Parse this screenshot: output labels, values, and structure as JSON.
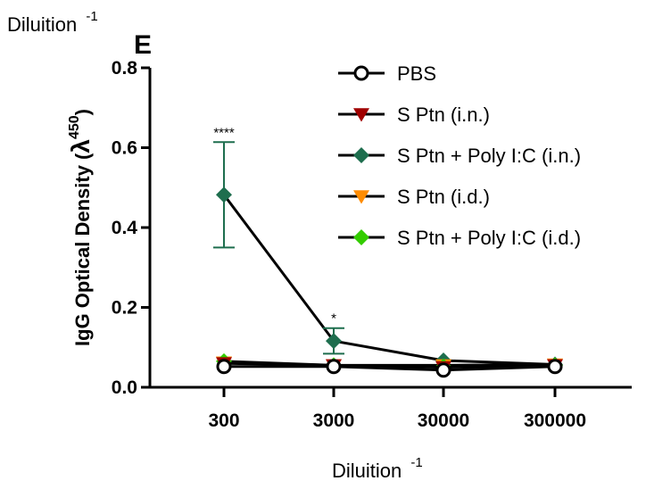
{
  "chart_data": {
    "type": "line",
    "panel_letter": "E",
    "top_left_label": "Diluition",
    "top_left_label_sup": "-1",
    "xlabel": "Diluition",
    "xlabel_sup": "-1",
    "ylabel": "IgG Optical Density (",
    "ylabel_symbol": "λ",
    "ylabel_sup": "450",
    "ylabel_close": ")",
    "categories": [
      "300",
      "3000",
      "30000",
      "300000"
    ],
    "y_ticks": [
      "0.0",
      "0.2",
      "0.4",
      "0.6",
      "0.8"
    ],
    "ylim": [
      0,
      0.8
    ],
    "grid": false,
    "legend_position": "top-right",
    "series": [
      {
        "name": "PBS",
        "marker": "circle",
        "color": "#000000",
        "line_color": "#000000",
        "values": [
          0.052,
          0.052,
          0.043,
          0.052
        ]
      },
      {
        "name": "S Ptn (i.n.)",
        "marker": "triangle-down",
        "color": "#a00000",
        "line_color": "#000000",
        "values": [
          0.06,
          0.055,
          0.05,
          0.055
        ]
      },
      {
        "name": "S Ptn + Poly I:C (i.n.)",
        "marker": "diamond",
        "color": "#1e6e4e",
        "line_color": "#000000",
        "values": [
          0.482,
          0.116,
          0.067,
          0.057
        ],
        "error": [
          0.132,
          0.032,
          0,
          0
        ]
      },
      {
        "name": "S Ptn (i.d.)",
        "marker": "triangle-down",
        "color": "#ff8c00",
        "line_color": "#000000",
        "values": [
          0.062,
          0.055,
          0.055,
          0.057
        ]
      },
      {
        "name": "S Ptn + Poly I:C (i.d.)",
        "marker": "diamond",
        "color": "#33cc00",
        "line_color": "#000000",
        "values": [
          0.065,
          0.055,
          0.052,
          0.055
        ]
      }
    ],
    "annotations": [
      {
        "text": "****",
        "category": "300",
        "y": 0.627
      },
      {
        "text": "*",
        "category": "3000",
        "y": 0.162
      }
    ]
  }
}
